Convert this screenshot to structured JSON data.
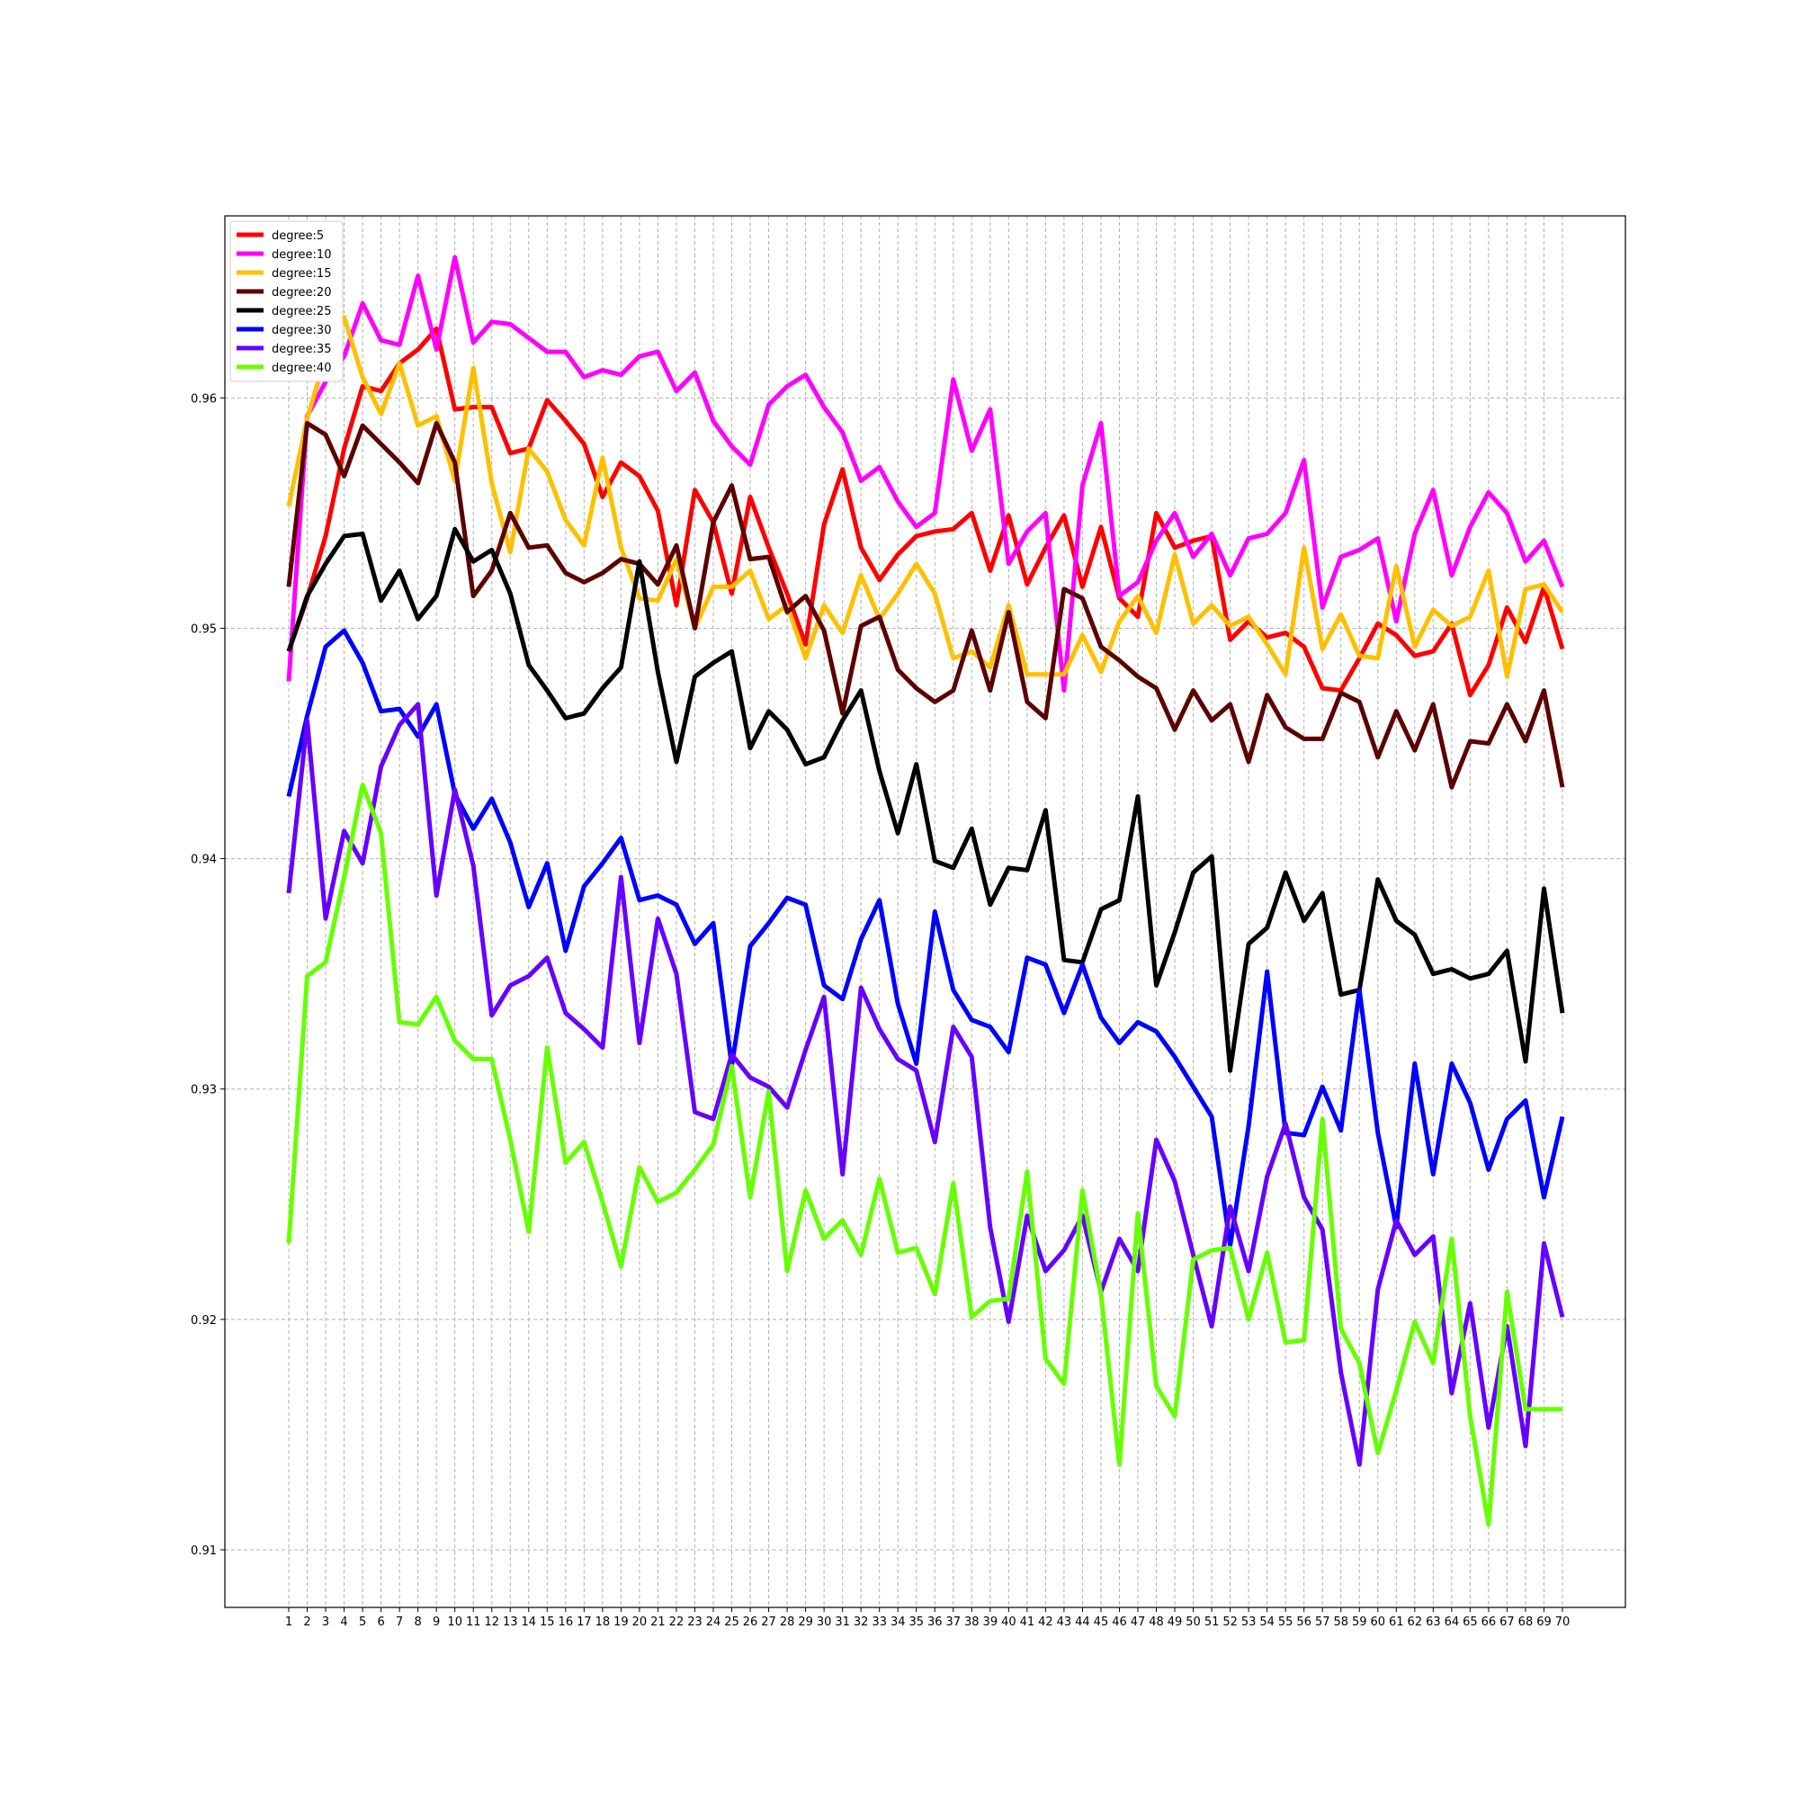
{
  "chart_data": {
    "type": "line",
    "title": "",
    "xlabel": "",
    "ylabel": "",
    "x": [
      1,
      2,
      3,
      4,
      5,
      6,
      7,
      8,
      9,
      10,
      11,
      12,
      13,
      14,
      15,
      16,
      17,
      18,
      19,
      20,
      21,
      22,
      23,
      24,
      25,
      26,
      27,
      28,
      29,
      30,
      31,
      32,
      33,
      34,
      35,
      36,
      37,
      38,
      39,
      40,
      41,
      42,
      43,
      44,
      45,
      46,
      47,
      48,
      49,
      50,
      51,
      52,
      53,
      54,
      55,
      56,
      57,
      58,
      59,
      60,
      61,
      62,
      63,
      64,
      65,
      66,
      67,
      68,
      69,
      70
    ],
    "ylim": [
      0.9075,
      0.9679
    ],
    "yticks": [
      0.91,
      0.92,
      0.93,
      0.94,
      0.95,
      0.96
    ],
    "ytick_labels": [
      "0.91",
      "0.92",
      "0.93",
      "0.94",
      "0.95",
      "0.96"
    ],
    "grid": true,
    "legend_position": "upper-left",
    "series": [
      {
        "name": "degree:5",
        "color": "#ff0000",
        "values": [
          0.949,
          0.9513,
          0.954,
          0.9578,
          0.9605,
          0.9603,
          0.9615,
          0.9621,
          0.963,
          0.9595,
          0.9596,
          0.9596,
          0.9576,
          0.9578,
          0.9599,
          0.959,
          0.958,
          0.9557,
          0.9572,
          0.9566,
          0.9551,
          0.951,
          0.956,
          0.9546,
          0.9515,
          0.9557,
          0.9535,
          0.9515,
          0.9493,
          0.9545,
          0.9569,
          0.9535,
          0.9521,
          0.9532,
          0.954,
          0.9542,
          0.9543,
          0.955,
          0.9525,
          0.9549,
          0.9519,
          0.9535,
          0.9549,
          0.9518,
          0.9544,
          0.9513,
          0.9505,
          0.955,
          0.9535,
          0.9538,
          0.954,
          0.9495,
          0.9503,
          0.9496,
          0.9498,
          0.9492,
          0.9474,
          0.9473,
          0.9487,
          0.9502,
          0.9497,
          0.9488,
          0.949,
          0.9502,
          0.9471,
          0.9484,
          0.9509,
          0.9494,
          0.9518,
          0.9491
        ]
      },
      {
        "name": "degree:10",
        "color": "#ff00ff",
        "values": [
          0.9477,
          0.9592,
          0.9607,
          0.9618,
          0.9641,
          0.9625,
          0.9623,
          0.9653,
          0.9621,
          0.9661,
          0.9624,
          0.9633,
          0.9632,
          0.9626,
          0.962,
          0.962,
          0.9609,
          0.9612,
          0.961,
          0.9618,
          0.962,
          0.9603,
          0.9611,
          0.959,
          0.9579,
          0.9571,
          0.9597,
          0.9605,
          0.961,
          0.9596,
          0.9585,
          0.9564,
          0.957,
          0.9555,
          0.9544,
          0.955,
          0.9608,
          0.9577,
          0.9595,
          0.9528,
          0.9542,
          0.955,
          0.9473,
          0.9562,
          0.9589,
          0.9514,
          0.952,
          0.9538,
          0.955,
          0.9531,
          0.9541,
          0.9523,
          0.9539,
          0.9541,
          0.955,
          0.9573,
          0.9509,
          0.9531,
          0.9534,
          0.9539,
          0.9503,
          0.9541,
          0.956,
          0.9523,
          0.9544,
          0.9559,
          0.955,
          0.9529,
          0.9538,
          0.9518
        ]
      },
      {
        "name": "degree:15",
        "color": "#ffc000",
        "values": [
          0.9553,
          0.9591,
          0.9618,
          0.9635,
          0.9609,
          0.9593,
          0.9615,
          0.9588,
          0.9592,
          0.9564,
          0.9613,
          0.9563,
          0.9533,
          0.9578,
          0.9568,
          0.9547,
          0.9536,
          0.9574,
          0.9535,
          0.9513,
          0.9512,
          0.953,
          0.95,
          0.9518,
          0.9518,
          0.9525,
          0.9504,
          0.951,
          0.9487,
          0.951,
          0.9498,
          0.9523,
          0.9504,
          0.9515,
          0.9528,
          0.9515,
          0.9487,
          0.949,
          0.9483,
          0.951,
          0.948,
          0.948,
          0.948,
          0.9497,
          0.9481,
          0.9503,
          0.9514,
          0.9498,
          0.9532,
          0.9502,
          0.951,
          0.9501,
          0.9505,
          0.9493,
          0.948,
          0.9535,
          0.9491,
          0.9506,
          0.9488,
          0.9487,
          0.9527,
          0.9492,
          0.9508,
          0.9501,
          0.9505,
          0.9525,
          0.9479,
          0.9517,
          0.9519,
          0.9507
        ]
      },
      {
        "name": "degree:20",
        "color": "#5c0000",
        "values": [
          0.9518,
          0.9589,
          0.9584,
          0.9566,
          0.9588,
          0.958,
          0.9572,
          0.9563,
          0.9589,
          0.9572,
          0.9514,
          0.9525,
          0.955,
          0.9535,
          0.9536,
          0.9524,
          0.952,
          0.9524,
          0.953,
          0.9528,
          0.9519,
          0.9536,
          0.95,
          0.9546,
          0.9562,
          0.953,
          0.9531,
          0.9507,
          0.9514,
          0.9499,
          0.9463,
          0.9501,
          0.9505,
          0.9482,
          0.9474,
          0.9468,
          0.9473,
          0.9499,
          0.9473,
          0.9507,
          0.9468,
          0.9461,
          0.9517,
          0.9513,
          0.9492,
          0.9486,
          0.9479,
          0.9474,
          0.9456,
          0.9473,
          0.946,
          0.9467,
          0.9442,
          0.9471,
          0.9457,
          0.9452,
          0.9452,
          0.9472,
          0.9468,
          0.9444,
          0.9464,
          0.9447,
          0.9467,
          0.9431,
          0.9451,
          0.945,
          0.9467,
          0.9451,
          0.9473,
          0.9431
        ]
      },
      {
        "name": "degree:25",
        "color": "#000000",
        "values": [
          0.949,
          0.9514,
          0.9528,
          0.954,
          0.9541,
          0.9512,
          0.9525,
          0.9504,
          0.9514,
          0.9543,
          0.9529,
          0.9534,
          0.9515,
          0.9484,
          0.9473,
          0.9461,
          0.9463,
          0.9474,
          0.9483,
          0.9529,
          0.9481,
          0.9442,
          0.9479,
          0.9485,
          0.949,
          0.9448,
          0.9464,
          0.9456,
          0.9441,
          0.9444,
          0.946,
          0.9473,
          0.9438,
          0.9411,
          0.9441,
          0.9399,
          0.9396,
          0.9413,
          0.938,
          0.9396,
          0.9395,
          0.9421,
          0.9356,
          0.9355,
          0.9378,
          0.9382,
          0.9427,
          0.9345,
          0.9368,
          0.9394,
          0.9401,
          0.9308,
          0.9363,
          0.937,
          0.9394,
          0.9373,
          0.9385,
          0.9341,
          0.9343,
          0.9391,
          0.9373,
          0.9367,
          0.935,
          0.9352,
          0.9348,
          0.935,
          0.936,
          0.9312,
          0.9387,
          0.9333
        ]
      },
      {
        "name": "degree:30",
        "color": "#0000ff",
        "values": [
          0.9427,
          0.9462,
          0.9492,
          0.9499,
          0.9485,
          0.9464,
          0.9465,
          0.9453,
          0.9467,
          0.9428,
          0.9413,
          0.9426,
          0.9407,
          0.9379,
          0.9398,
          0.936,
          0.9388,
          0.9398,
          0.9409,
          0.9382,
          0.9384,
          0.938,
          0.9363,
          0.9372,
          0.931,
          0.9362,
          0.9372,
          0.9383,
          0.938,
          0.9345,
          0.9339,
          0.9365,
          0.9382,
          0.9337,
          0.9311,
          0.9377,
          0.9343,
          0.933,
          0.9327,
          0.9316,
          0.9357,
          0.9354,
          0.9333,
          0.9354,
          0.9331,
          0.932,
          0.9329,
          0.9325,
          0.9314,
          0.9301,
          0.9288,
          0.9232,
          0.9284,
          0.9351,
          0.9281,
          0.928,
          0.9301,
          0.9282,
          0.9343,
          0.9281,
          0.924,
          0.9311,
          0.9263,
          0.9311,
          0.9294,
          0.9265,
          0.9287,
          0.9295,
          0.9253,
          0.9288
        ]
      },
      {
        "name": "degree:35",
        "color": "#6600ff",
        "values": [
          0.9385,
          0.946,
          0.9374,
          0.9412,
          0.9398,
          0.944,
          0.9458,
          0.9467,
          0.9384,
          0.943,
          0.9397,
          0.9332,
          0.9345,
          0.9349,
          0.9357,
          0.9333,
          0.9326,
          0.9318,
          0.9392,
          0.932,
          0.9374,
          0.935,
          0.929,
          0.9287,
          0.9315,
          0.9305,
          0.9301,
          0.9292,
          0.9317,
          0.934,
          0.9263,
          0.9344,
          0.9326,
          0.9313,
          0.9308,
          0.9277,
          0.9327,
          0.9314,
          0.924,
          0.9199,
          0.9245,
          0.9221,
          0.923,
          0.9245,
          0.9212,
          0.9235,
          0.9221,
          0.9278,
          0.926,
          0.9228,
          0.9197,
          0.9249,
          0.9221,
          0.9262,
          0.9285,
          0.9253,
          0.9239,
          0.9177,
          0.9137,
          0.9213,
          0.9243,
          0.9228,
          0.9236,
          0.9168,
          0.9207,
          0.9153,
          0.9197,
          0.9145,
          0.9233,
          0.9201
        ]
      },
      {
        "name": "degree:40",
        "color": "#66ff00",
        "values": [
          0.9233,
          0.9349,
          0.9355,
          0.9392,
          0.9432,
          0.9411,
          0.9329,
          0.9328,
          0.934,
          0.9321,
          0.9313,
          0.9313,
          0.9278,
          0.9238,
          0.9318,
          0.9268,
          0.9277,
          0.9251,
          0.9223,
          0.9266,
          0.9251,
          0.9255,
          0.9265,
          0.9276,
          0.931,
          0.9253,
          0.9299,
          0.9221,
          0.9256,
          0.9235,
          0.9243,
          0.9228,
          0.9261,
          0.9229,
          0.9231,
          0.9211,
          0.9259,
          0.9201,
          0.9208,
          0.9209,
          0.9264,
          0.9183,
          0.9172,
          0.9256,
          0.9211,
          0.9137,
          0.9246,
          0.9171,
          0.9158,
          0.9226,
          0.923,
          0.9231,
          0.92,
          0.9229,
          0.919,
          0.9191,
          0.9287,
          0.9196,
          0.9181,
          0.9142,
          0.9169,
          0.9199,
          0.9181,
          0.9235,
          0.9158,
          0.9111,
          0.9212,
          0.9161,
          0.9161,
          0.9161
        ]
      }
    ]
  }
}
